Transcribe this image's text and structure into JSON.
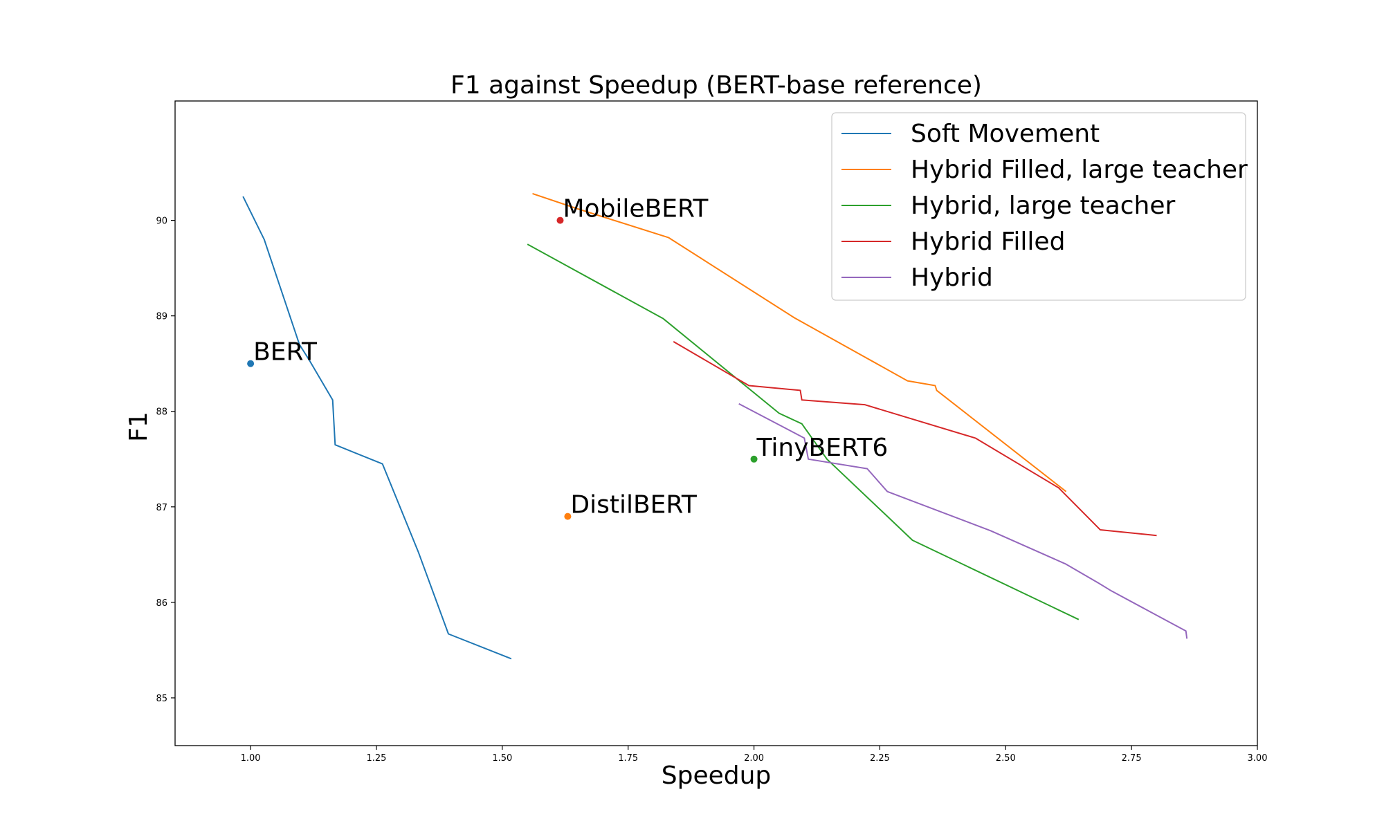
{
  "chart_data": {
    "type": "line",
    "title": "F1 against Speedup (BERT-base reference)",
    "xlabel": "Speedup",
    "ylabel": "F1",
    "xlim": [
      0.85,
      3.0
    ],
    "ylim": [
      84.5,
      91.25
    ],
    "xticks": [
      1.0,
      1.25,
      1.5,
      1.75,
      2.0,
      2.25,
      2.5,
      2.75,
      3.0
    ],
    "xtick_labels": [
      "1.00",
      "1.25",
      "1.50",
      "1.75",
      "2.00",
      "2.25",
      "2.50",
      "2.75",
      "3.00"
    ],
    "yticks": [
      85,
      86,
      87,
      88,
      89,
      90
    ],
    "ytick_labels": [
      "85",
      "86",
      "87",
      "88",
      "89",
      "90"
    ],
    "grid": false,
    "legend_position": "top-right",
    "series": [
      {
        "name": "Soft Movement",
        "color": "#1f77b4",
        "points": [
          [
            0.985,
            90.25
          ],
          [
            1.027,
            89.8
          ],
          [
            1.097,
            88.7
          ],
          [
            1.115,
            88.55
          ],
          [
            1.163,
            88.12
          ],
          [
            1.168,
            87.65
          ],
          [
            1.262,
            87.45
          ],
          [
            1.333,
            86.53
          ],
          [
            1.393,
            85.67
          ],
          [
            1.518,
            85.41
          ]
        ]
      },
      {
        "name": "Hybrid Filled, large teacher",
        "color": "#ff7f0e",
        "points": [
          [
            1.56,
            90.28
          ],
          [
            1.65,
            90.12
          ],
          [
            1.83,
            89.82
          ],
          [
            2.08,
            88.98
          ],
          [
            2.305,
            88.32
          ],
          [
            2.36,
            88.27
          ],
          [
            2.363,
            88.22
          ],
          [
            2.62,
            87.16
          ]
        ]
      },
      {
        "name": "Hybrid, large teacher",
        "color": "#2ca02c",
        "points": [
          [
            1.55,
            89.75
          ],
          [
            1.82,
            88.97
          ],
          [
            2.05,
            87.98
          ],
          [
            2.095,
            87.87
          ],
          [
            2.145,
            87.5
          ],
          [
            2.315,
            86.65
          ],
          [
            2.645,
            85.82
          ]
        ]
      },
      {
        "name": "Hybrid Filled",
        "color": "#d62728",
        "points": [
          [
            1.84,
            88.73
          ],
          [
            1.99,
            88.27
          ],
          [
            2.092,
            88.22
          ],
          [
            2.095,
            88.12
          ],
          [
            2.22,
            88.07
          ],
          [
            2.44,
            87.72
          ],
          [
            2.605,
            87.2
          ],
          [
            2.688,
            86.76
          ],
          [
            2.8,
            86.7
          ]
        ]
      },
      {
        "name": "Hybrid",
        "color": "#9467bd",
        "points": [
          [
            1.97,
            88.08
          ],
          [
            2.1,
            87.72
          ],
          [
            2.108,
            87.5
          ],
          [
            2.225,
            87.4
          ],
          [
            2.265,
            87.16
          ],
          [
            2.47,
            86.75
          ],
          [
            2.62,
            86.4
          ],
          [
            2.685,
            86.2
          ],
          [
            2.71,
            86.12
          ],
          [
            2.858,
            85.7
          ],
          [
            2.86,
            85.62
          ]
        ]
      }
    ],
    "annotations": [
      {
        "label": "BERT",
        "x": 1.0,
        "y": 88.5,
        "color": "#1f77b4"
      },
      {
        "label": "MobileBERT",
        "x": 1.615,
        "y": 90.0,
        "color": "#d62728"
      },
      {
        "label": "TinyBERT6",
        "x": 2.0,
        "y": 87.5,
        "color": "#2ca02c"
      },
      {
        "label": "DistilBERT",
        "x": 1.63,
        "y": 86.9,
        "color": "#ff7f0e"
      }
    ]
  }
}
